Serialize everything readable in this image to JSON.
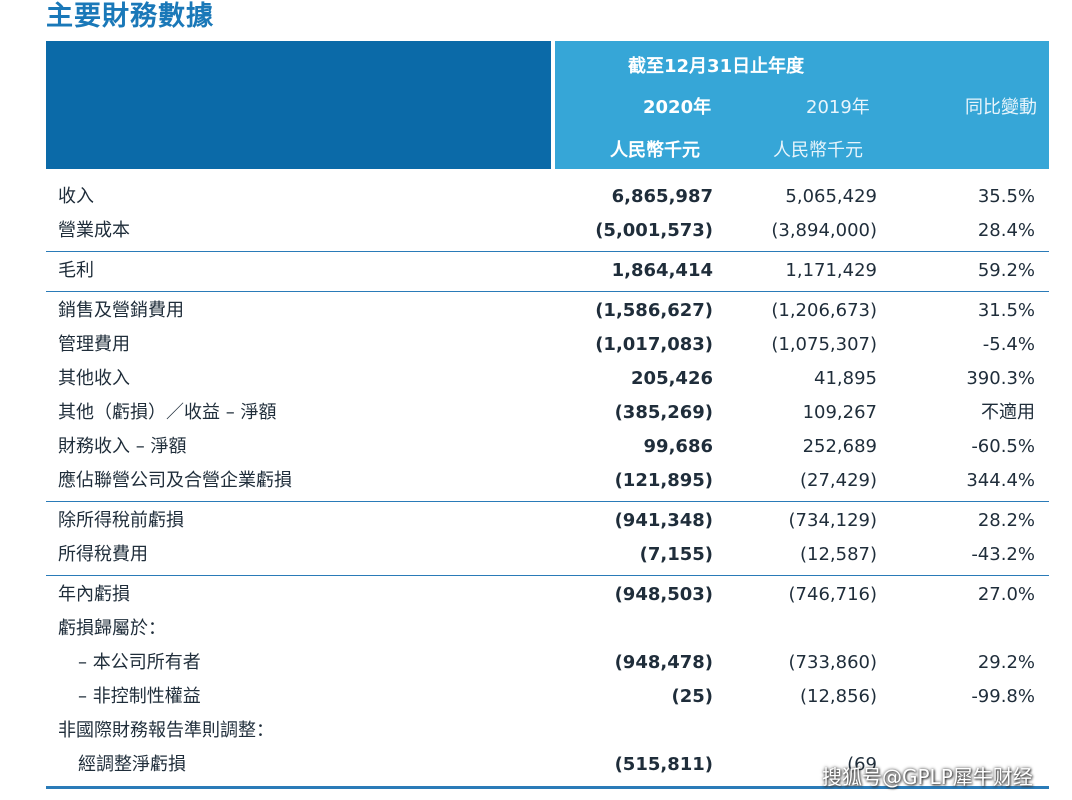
{
  "title": "主要財務數據",
  "header": {
    "period": "截至12月31日止年度",
    "col_2020": "2020年",
    "col_2019": "2019年",
    "col_change": "同比變動",
    "unit_2020": "人民幣千元",
    "unit_2019": "人民幣千元"
  },
  "groups": [
    [
      {
        "label": "收入",
        "v2020": "6,865,987",
        "v2019": "5,065,429",
        "change": "35.5%"
      },
      {
        "label": "營業成本",
        "v2020": "(5,001,573)",
        "v2019": "(3,894,000)",
        "change": "28.4%"
      }
    ],
    [
      {
        "label": "毛利",
        "v2020": "1,864,414",
        "v2019": "1,171,429",
        "change": "59.2%"
      }
    ],
    [
      {
        "label": "銷售及營銷費用",
        "v2020": "(1,586,627)",
        "v2019": "(1,206,673)",
        "change": "31.5%"
      },
      {
        "label": "管理費用",
        "v2020": "(1,017,083)",
        "v2019": "(1,075,307)",
        "change": "-5.4%"
      },
      {
        "label": "其他收入",
        "v2020": "205,426",
        "v2019": "41,895",
        "change": "390.3%"
      },
      {
        "label": "其他（虧損）／收益 – 淨額",
        "v2020": "(385,269)",
        "v2019": "109,267",
        "change": "不適用"
      },
      {
        "label": "財務收入 – 淨額",
        "v2020": "99,686",
        "v2019": "252,689",
        "change": "-60.5%"
      },
      {
        "label": "應佔聯營公司及合營企業虧損",
        "v2020": "(121,895)",
        "v2019": "(27,429)",
        "change": "344.4%"
      }
    ],
    [
      {
        "label": "除所得稅前虧損",
        "v2020": "(941,348)",
        "v2019": "(734,129)",
        "change": "28.2%"
      },
      {
        "label": "所得稅費用",
        "v2020": "(7,155)",
        "v2019": "(12,587)",
        "change": "-43.2%"
      }
    ],
    [
      {
        "label": "年內虧損",
        "v2020": "(948,503)",
        "v2019": "(746,716)",
        "change": "27.0%"
      },
      {
        "label": "虧損歸屬於：",
        "v2020": "",
        "v2019": "",
        "change": ""
      },
      {
        "label": "– 本公司所有者",
        "v2020": "(948,478)",
        "v2019": "(733,860)",
        "change": "29.2%"
      },
      {
        "label": "– 非控制性權益",
        "v2020": "(25)",
        "v2019": "(12,856)",
        "change": "-99.8%"
      },
      {
        "label": "非國際財務報告準則調整：",
        "v2020": "",
        "v2019": "",
        "change": ""
      },
      {
        "label": "經調整淨虧損",
        "v2020": "(515,811)",
        "v2019": "(69",
        "change": ""
      }
    ]
  ],
  "watermark": "搜狐号@GPLP犀牛财经",
  "colors": {
    "header_dark": "#0b6aa8",
    "header_light": "#36a6d7",
    "rule": "#2a7bb8",
    "title": "#1a78b8"
  }
}
